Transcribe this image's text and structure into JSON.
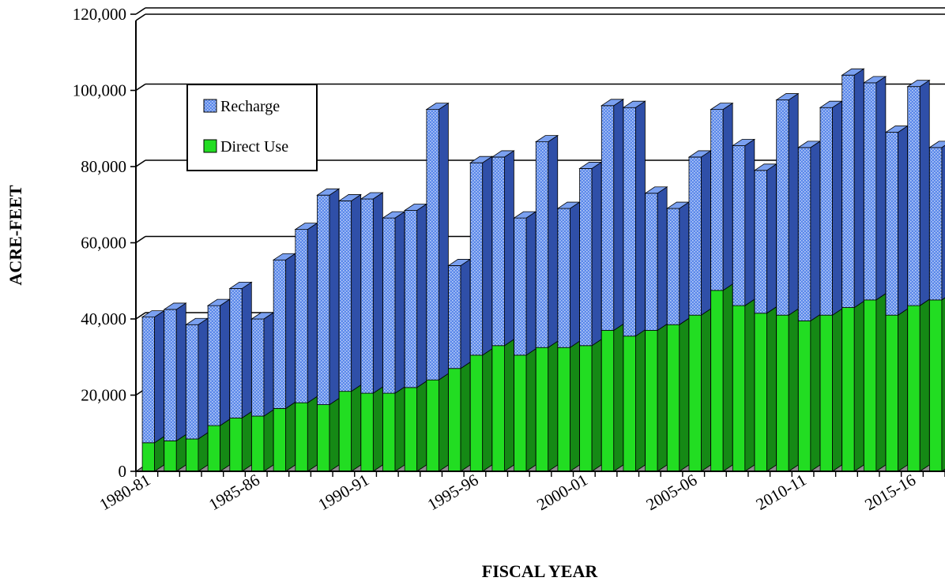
{
  "chart_data": {
    "type": "bar",
    "stacked": true,
    "three_d": true,
    "xlabel": "FISCAL YEAR",
    "ylabel": "ACRE-FEET",
    "ylim": [
      0,
      120000
    ],
    "y_ticks": [
      "0",
      "20,000",
      "40,000",
      "60,000",
      "80,000",
      "100,000",
      "120,000"
    ],
    "x_tick_labels": [
      "1980-81",
      "1985-86",
      "1990-91",
      "1995-96",
      "2000-01",
      "2005-06",
      "2010-11",
      "2015-16"
    ],
    "grid": "horizontal",
    "legend": {
      "placement": "top-left",
      "items": [
        "Recharge",
        "Direct Use"
      ]
    },
    "categories": [
      "1980-81",
      "1981-82",
      "1982-83",
      "1983-84",
      "1984-85",
      "1985-86",
      "1986-87",
      "1987-88",
      "1988-89",
      "1989-90",
      "1990-91",
      "1991-92",
      "1992-93",
      "1993-94",
      "1994-95",
      "1995-96",
      "1996-97",
      "1997-98",
      "1998-99",
      "1999-00",
      "2000-01",
      "2001-02",
      "2002-03",
      "2003-04",
      "2004-05",
      "2005-06",
      "2006-07",
      "2007-08",
      "2008-09",
      "2009-10",
      "2010-11",
      "2011-12",
      "2012-13",
      "2013-14",
      "2014-15",
      "2015-16",
      "2016-17"
    ],
    "series": [
      {
        "name": "Direct Use",
        "color": "#22dd22",
        "values": [
          7500,
          8000,
          8500,
          12000,
          14000,
          14500,
          16500,
          18000,
          17500,
          21000,
          20500,
          20500,
          22000,
          24000,
          27000,
          30500,
          33000,
          30500,
          32500,
          32500,
          33000,
          37000,
          35500,
          37000,
          38500,
          41000,
          47500,
          43500,
          41500,
          41000,
          39500,
          41000,
          43000,
          45000,
          41000,
          43500,
          45000
        ]
      },
      {
        "name": "Recharge",
        "color": "#4f7fe6",
        "values": [
          33000,
          34500,
          30000,
          31500,
          34000,
          25500,
          39000,
          45500,
          55000,
          50000,
          51000,
          46000,
          46500,
          71000,
          27000,
          50500,
          49500,
          36000,
          54000,
          36500,
          46500,
          59000,
          60000,
          36000,
          30500,
          41500,
          47500,
          42000,
          37500,
          56500,
          45500,
          54500,
          61000,
          57000,
          48000,
          57500,
          40000
        ]
      }
    ]
  }
}
